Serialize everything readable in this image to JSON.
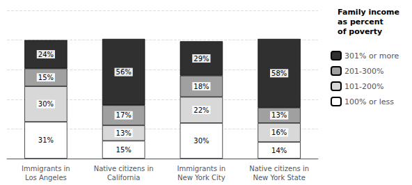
{
  "chart_data": {
    "type": "bar",
    "stacked": true,
    "categories": [
      "Immigrants in\nLos Angeles",
      "Native citizens in\nCalifornia",
      "Immigrants in\nNew York City",
      "Native citizens in\nNew York State"
    ],
    "series": [
      {
        "name": "100% or less",
        "color": "#ffffff",
        "values": [
          31,
          15,
          30,
          14
        ],
        "value_labels": [
          "31%",
          "15%",
          "30%",
          "14%"
        ]
      },
      {
        "name": "101-200%",
        "color": "#d8d8d8",
        "values": [
          30,
          13,
          22,
          16
        ],
        "value_labels": [
          "30%",
          "13%",
          "22%",
          "16%"
        ]
      },
      {
        "name": "201-300%",
        "color": "#a0a0a0",
        "values": [
          15,
          17,
          18,
          13
        ],
        "value_labels": [
          "15%",
          "17%",
          "18%",
          "13%"
        ]
      },
      {
        "name": "301% or more",
        "color": "#303030",
        "values": [
          24,
          56,
          29,
          58
        ],
        "value_labels": [
          "24%",
          "56%",
          "29%",
          "58%"
        ]
      }
    ],
    "legend_title": "Family income\nas percent\nof poverty",
    "ylim": [
      0,
      125
    ],
    "yticks": [
      0,
      25,
      50,
      75,
      100,
      125
    ],
    "grid": true,
    "legend": "right",
    "data_labels": true,
    "tick_labels": "x"
  }
}
